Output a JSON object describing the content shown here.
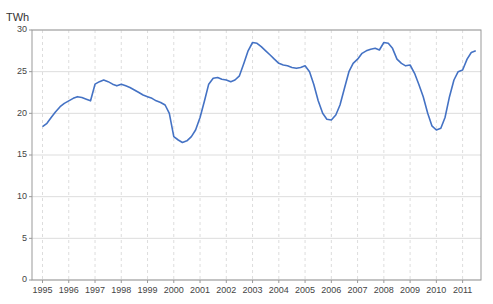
{
  "chart_data": {
    "type": "line",
    "ylabel": "TWh",
    "x": [
      1995.0,
      1995.17,
      1995.33,
      1995.5,
      1995.67,
      1995.83,
      1996.0,
      1996.17,
      1996.33,
      1996.5,
      1996.67,
      1996.83,
      1997.0,
      1997.17,
      1997.33,
      1997.5,
      1997.67,
      1997.83,
      1998.0,
      1998.17,
      1998.33,
      1998.5,
      1998.67,
      1998.83,
      1999.0,
      1999.17,
      1999.33,
      1999.5,
      1999.67,
      1999.83,
      2000.0,
      2000.17,
      2000.33,
      2000.5,
      2000.67,
      2000.83,
      2001.0,
      2001.17,
      2001.33,
      2001.5,
      2001.67,
      2001.83,
      2002.0,
      2002.17,
      2002.33,
      2002.5,
      2002.67,
      2002.83,
      2003.0,
      2003.17,
      2003.33,
      2003.5,
      2003.67,
      2003.83,
      2004.0,
      2004.17,
      2004.33,
      2004.5,
      2004.67,
      2004.83,
      2005.0,
      2005.17,
      2005.33,
      2005.5,
      2005.67,
      2005.83,
      2006.0,
      2006.17,
      2006.33,
      2006.5,
      2006.67,
      2006.83,
      2007.0,
      2007.17,
      2007.33,
      2007.5,
      2007.67,
      2007.83,
      2008.0,
      2008.17,
      2008.33,
      2008.5,
      2008.67,
      2008.83,
      2009.0,
      2009.17,
      2009.33,
      2009.5,
      2009.67,
      2009.83,
      2010.0,
      2010.17,
      2010.33,
      2010.5,
      2010.67,
      2010.83,
      2011.0,
      2011.17,
      2011.33,
      2011.5
    ],
    "values": [
      18.4,
      18.8,
      19.5,
      20.2,
      20.8,
      21.2,
      21.5,
      21.8,
      22.0,
      21.9,
      21.7,
      21.5,
      23.5,
      23.8,
      24.0,
      23.8,
      23.5,
      23.3,
      23.5,
      23.3,
      23.1,
      22.8,
      22.5,
      22.2,
      22.0,
      21.8,
      21.5,
      21.3,
      21.0,
      20.0,
      17.2,
      16.8,
      16.5,
      16.7,
      17.2,
      18.0,
      19.5,
      21.5,
      23.5,
      24.2,
      24.3,
      24.1,
      24.0,
      23.8,
      24.0,
      24.5,
      26.0,
      27.5,
      28.5,
      28.4,
      28.0,
      27.5,
      27.0,
      26.5,
      26.0,
      25.8,
      25.7,
      25.5,
      25.4,
      25.5,
      25.7,
      25.0,
      23.5,
      21.5,
      20.0,
      19.3,
      19.2,
      19.8,
      21.0,
      23.0,
      25.0,
      26.0,
      26.5,
      27.2,
      27.5,
      27.7,
      27.8,
      27.6,
      28.5,
      28.4,
      27.8,
      26.5,
      26.0,
      25.7,
      25.8,
      24.8,
      23.5,
      22.0,
      20.0,
      18.5,
      18.0,
      18.2,
      19.5,
      22.0,
      24.0,
      25.0,
      25.2,
      26.5,
      27.3,
      27.5
    ],
    "color": "#4472C4",
    "xlim": [
      1994.6,
      2011.7
    ],
    "xticks": [
      1995,
      1996,
      1997,
      1998,
      1999,
      2000,
      2001,
      2002,
      2003,
      2004,
      2005,
      2006,
      2007,
      2008,
      2009,
      2010,
      2011
    ],
    "ylim": [
      0,
      30
    ],
    "yticks": [
      0,
      5,
      10,
      15,
      20,
      25,
      30
    ],
    "grid": true
  }
}
